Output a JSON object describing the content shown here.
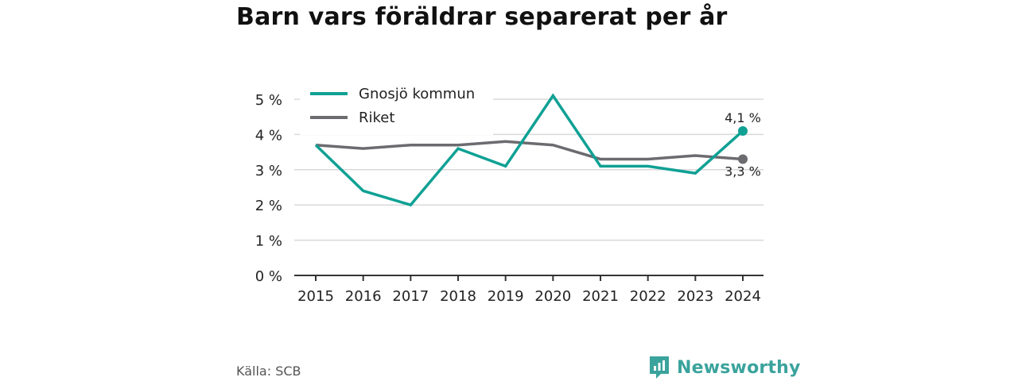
{
  "title": "Barn vars föräldrar separerat per år",
  "source": "Källa: SCB",
  "brand": {
    "name": "Newsworthy",
    "icon": "newsworthy-logo-icon"
  },
  "colors": {
    "gnosjo": "#0fa194",
    "riket": "#6b6b70",
    "grid": "#d9d9d9",
    "axis": "#333333"
  },
  "chart_data": {
    "type": "line",
    "title": "Barn vars föräldrar separerat per år",
    "x": [
      "2015",
      "2016",
      "2017",
      "2018",
      "2019",
      "2020",
      "2021",
      "2022",
      "2023",
      "2024"
    ],
    "ylim": [
      0,
      5
    ],
    "yticks": [
      0,
      1,
      2,
      3,
      4,
      5
    ],
    "ytick_labels": [
      "0 %",
      "1 %",
      "2 %",
      "3 %",
      "4 %",
      "5 %"
    ],
    "grid": true,
    "legend_position": "top-left",
    "series": [
      {
        "name": "Gnosjö kommun",
        "color": "#0fa194",
        "values": [
          3.7,
          2.4,
          2.0,
          3.6,
          3.1,
          5.1,
          3.1,
          3.1,
          2.9,
          4.1
        ],
        "end_label": "4,1 %"
      },
      {
        "name": "Riket",
        "color": "#6b6b70",
        "values": [
          3.7,
          3.6,
          3.7,
          3.7,
          3.8,
          3.7,
          3.3,
          3.3,
          3.4,
          3.3
        ],
        "end_label": "3,3 %"
      }
    ]
  }
}
